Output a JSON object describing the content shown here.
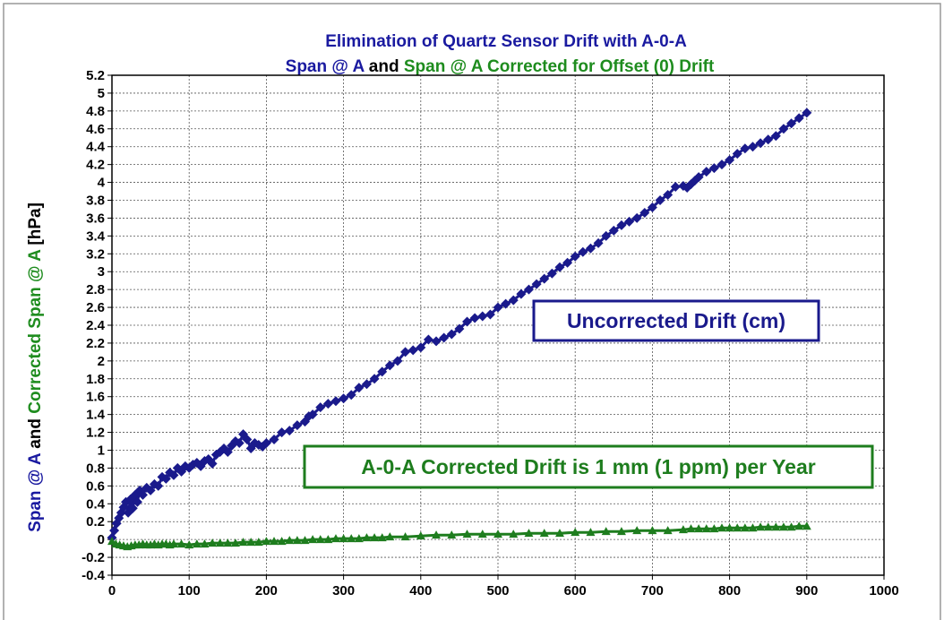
{
  "chart_data": {
    "type": "line",
    "title_line1": "Elimination of Quartz Sensor Drift with A-0-A",
    "title_line2": {
      "part1": "Span @ A",
      "part2": " and ",
      "part3": "Span @ A Corrected for Offset (0) Drift"
    },
    "ylabel": {
      "part1": "Span @ A",
      "part2": " and ",
      "part3": "Corrected Span @ A",
      "part4": " [hPa]"
    },
    "xlabel": "",
    "xlim": [
      0,
      1000
    ],
    "ylim": [
      -0.4,
      5.2
    ],
    "x_ticks": [
      "0",
      "100",
      "200",
      "300",
      "400",
      "500",
      "600",
      "700",
      "800",
      "900",
      "1000"
    ],
    "y_ticks": [
      "5.2",
      "5",
      "4.8",
      "4.6",
      "4.4",
      "4.2",
      "4",
      "3.8",
      "3.6",
      "3.4",
      "3.2",
      "3",
      "2.8",
      "2.6",
      "2.4",
      "2.2",
      "2",
      "1.8",
      "1.6",
      "1.4",
      "1.2",
      "1",
      "0.8",
      "0.6",
      "0.4",
      "0.2",
      "0",
      "-0.2",
      "-0.4"
    ],
    "grid": true,
    "colors": {
      "uncorrected": "#1a1a8c",
      "corrected": "#1e7d1e",
      "title_blue": "#1a1aa0",
      "title_green": "#1e8c1e"
    },
    "annotations": {
      "uncorrected_box": "Uncorrected Drift (cm)",
      "corrected_box": "A-0-A Corrected Drift is 1 mm (1 ppm) per Year"
    },
    "series": [
      {
        "marker": "diamond",
        "x": [
          0,
          3,
          6,
          9,
          12,
          15,
          18,
          21,
          24,
          27,
          30,
          33,
          36,
          40,
          45,
          50,
          55,
          60,
          65,
          70,
          75,
          80,
          85,
          90,
          95,
          100,
          105,
          110,
          115,
          120,
          125,
          130,
          135,
          140,
          145,
          150,
          155,
          160,
          165,
          170,
          175,
          180,
          185,
          190,
          195,
          200,
          210,
          220,
          230,
          240,
          250,
          255,
          260,
          270,
          280,
          290,
          300,
          310,
          320,
          330,
          340,
          350,
          360,
          370,
          380,
          390,
          400,
          410,
          420,
          430,
          440,
          450,
          460,
          470,
          480,
          490,
          500,
          510,
          520,
          530,
          540,
          550,
          560,
          570,
          580,
          590,
          600,
          610,
          620,
          630,
          640,
          650,
          660,
          670,
          680,
          690,
          700,
          710,
          720,
          730,
          740,
          745,
          750,
          755,
          760,
          770,
          780,
          790,
          800,
          810,
          820,
          830,
          840,
          850,
          860,
          870,
          880,
          890,
          900
        ],
        "y": [
          0.02,
          0.1,
          0.18,
          0.24,
          0.3,
          0.36,
          0.42,
          0.3,
          0.45,
          0.35,
          0.5,
          0.42,
          0.55,
          0.5,
          0.58,
          0.55,
          0.62,
          0.6,
          0.7,
          0.68,
          0.75,
          0.72,
          0.8,
          0.76,
          0.82,
          0.8,
          0.84,
          0.86,
          0.82,
          0.88,
          0.9,
          0.85,
          0.95,
          0.98,
          1.02,
          0.98,
          1.05,
          1.1,
          1.08,
          1.18,
          1.12,
          1.02,
          1.08,
          1.06,
          1.04,
          1.08,
          1.12,
          1.2,
          1.22,
          1.28,
          1.32,
          1.38,
          1.4,
          1.48,
          1.52,
          1.55,
          1.58,
          1.62,
          1.7,
          1.74,
          1.8,
          1.88,
          1.95,
          2.0,
          2.1,
          2.12,
          2.15,
          2.24,
          2.22,
          2.26,
          2.3,
          2.36,
          2.44,
          2.48,
          2.5,
          2.52,
          2.6,
          2.64,
          2.68,
          2.75,
          2.8,
          2.86,
          2.92,
          2.98,
          3.05,
          3.1,
          3.17,
          3.22,
          3.26,
          3.32,
          3.4,
          3.46,
          3.52,
          3.56,
          3.6,
          3.66,
          3.72,
          3.8,
          3.86,
          3.95,
          3.96,
          3.94,
          3.98,
          4.02,
          4.06,
          4.12,
          4.16,
          4.2,
          4.25,
          4.32,
          4.38,
          4.4,
          4.44,
          4.48,
          4.52,
          4.6,
          4.66,
          4.72,
          4.78
        ]
      },
      {
        "marker": "triangle",
        "x": [
          0,
          5,
          10,
          15,
          20,
          25,
          30,
          35,
          40,
          45,
          50,
          55,
          60,
          65,
          70,
          75,
          80,
          90,
          100,
          110,
          120,
          130,
          140,
          150,
          160,
          170,
          180,
          190,
          200,
          210,
          220,
          230,
          240,
          250,
          260,
          270,
          280,
          290,
          300,
          310,
          320,
          330,
          340,
          350,
          360,
          380,
          400,
          420,
          440,
          460,
          480,
          500,
          520,
          540,
          560,
          580,
          600,
          620,
          640,
          660,
          680,
          700,
          720,
          740,
          750,
          760,
          770,
          780,
          790,
          800,
          810,
          820,
          830,
          840,
          850,
          860,
          870,
          880,
          890,
          900
        ],
        "y": [
          -0.02,
          -0.05,
          -0.06,
          -0.07,
          -0.08,
          -0.07,
          -0.06,
          -0.06,
          -0.05,
          -0.06,
          -0.06,
          -0.05,
          -0.06,
          -0.05,
          -0.05,
          -0.06,
          -0.05,
          -0.05,
          -0.06,
          -0.05,
          -0.05,
          -0.04,
          -0.04,
          -0.04,
          -0.04,
          -0.03,
          -0.03,
          -0.03,
          -0.02,
          -0.02,
          -0.02,
          -0.01,
          -0.01,
          -0.01,
          0.0,
          0.0,
          0.0,
          0.01,
          0.01,
          0.01,
          0.01,
          0.02,
          0.02,
          0.02,
          0.03,
          0.03,
          0.04,
          0.05,
          0.05,
          0.06,
          0.06,
          0.06,
          0.06,
          0.07,
          0.07,
          0.07,
          0.08,
          0.08,
          0.09,
          0.09,
          0.1,
          0.1,
          0.1,
          0.11,
          0.12,
          0.12,
          0.12,
          0.12,
          0.13,
          0.13,
          0.13,
          0.13,
          0.13,
          0.14,
          0.14,
          0.14,
          0.14,
          0.14,
          0.15,
          0.15
        ]
      }
    ]
  }
}
